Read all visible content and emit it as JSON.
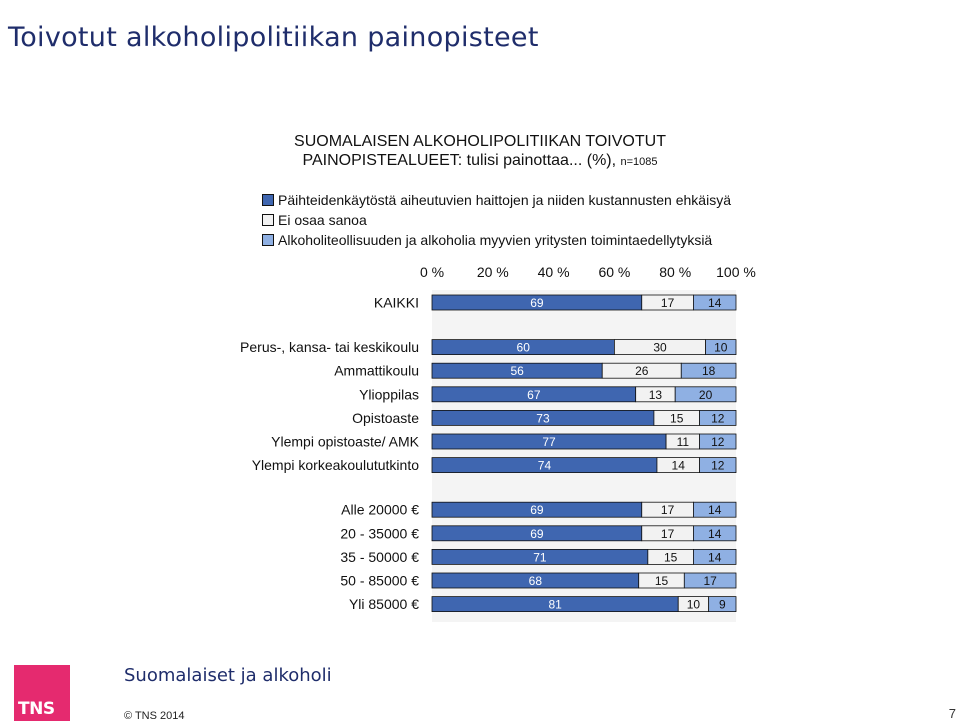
{
  "slide": {
    "title": "Toivotut alkoholipolitiikan painopisteet"
  },
  "chart_data": {
    "type": "bar",
    "orientation": "horizontal",
    "stacked": true,
    "title_line1": "SUOMALAISEN ALKOHOLIPOLITIIKAN TOIVOTUT",
    "title_line2": "PAINOPISTEALUEET: tulisi painottaa... (%),",
    "title_n": "n=1085",
    "xlim": [
      0,
      100
    ],
    "x_ticks": [
      "0 %",
      "20 %",
      "40 %",
      "60 %",
      "80 %",
      "100 %"
    ],
    "legend_placement": "top-left",
    "series": [
      {
        "name": "Päihteidenkäytöstä aiheutuvien haittojen ja niiden kustannusten ehkäisyä",
        "color": "#3f66b0"
      },
      {
        "name": "Ei osaa sanoa",
        "color": "#f2f2f2"
      },
      {
        "name": "Alkoholiteollisuuden ja alkoholia myyvien yritysten toimintaedellytyksiä",
        "color": "#8fb0e3"
      }
    ],
    "groups": [
      {
        "rows": [
          {
            "label": "KAIKKI",
            "values": [
              69,
              17,
              14
            ]
          }
        ]
      },
      {
        "rows": [
          {
            "label": "Perus-, kansa- tai keskikoulu",
            "values": [
              60,
              30,
              10
            ]
          },
          {
            "label": "Ammattikoulu",
            "values": [
              56,
              26,
              18
            ]
          },
          {
            "label": "Ylioppilas",
            "values": [
              67,
              13,
              20
            ]
          },
          {
            "label": "Opistoaste",
            "values": [
              73,
              15,
              12
            ]
          },
          {
            "label": "Ylempi opistoaste/ AMK",
            "values": [
              77,
              11,
              12
            ]
          },
          {
            "label": "Ylempi korkeakoulututkinto",
            "values": [
              74,
              14,
              12
            ]
          }
        ]
      },
      {
        "rows": [
          {
            "label": "Alle 20000 €",
            "values": [
              69,
              17,
              14
            ]
          },
          {
            "label": "20 - 35000 €",
            "values": [
              69,
              17,
              14
            ]
          },
          {
            "label": "35 - 50000 €",
            "values": [
              71,
              15,
              14
            ]
          },
          {
            "label": "50 - 85000 €",
            "values": [
              68,
              15,
              17
            ]
          },
          {
            "label": "Yli 85000 €",
            "values": [
              81,
              10,
              9
            ]
          }
        ]
      }
    ]
  },
  "footer": {
    "title": "Suomalaiset ja alkoholi",
    "copyright": "© TNS 2014",
    "page_number": "7",
    "logo_text": "TNS",
    "logo_color": "#e52a6f"
  }
}
